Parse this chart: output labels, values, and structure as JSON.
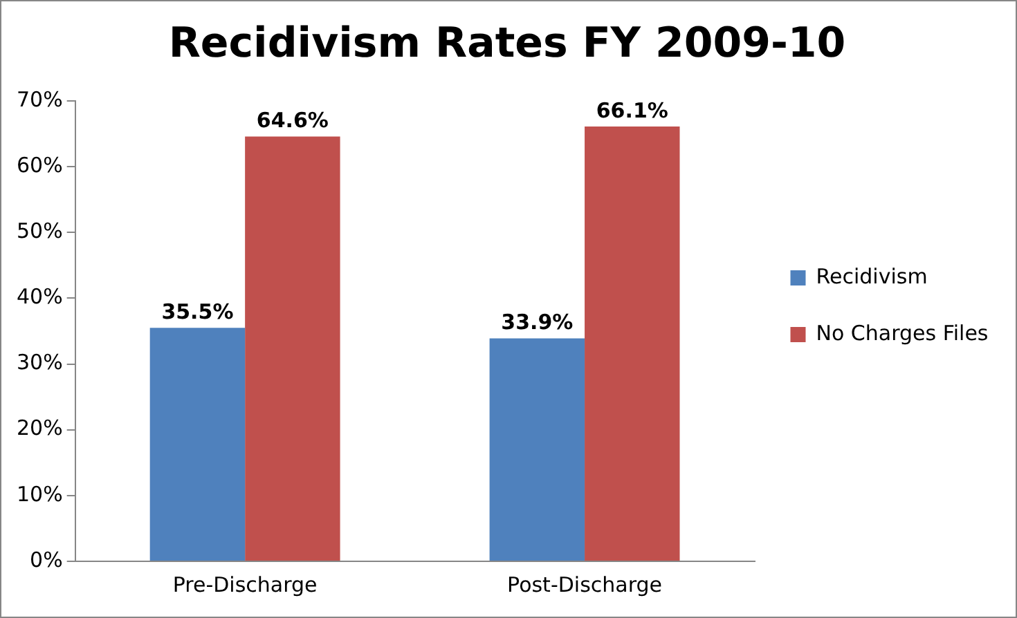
{
  "chart_data": {
    "type": "bar",
    "title": "Recidivism Rates FY 2009-10",
    "categories": [
      "Pre-Discharge",
      "Post-Discharge"
    ],
    "series": [
      {
        "name": "Recidivism",
        "color": "#4f81bd",
        "values": [
          35.5,
          33.9
        ],
        "value_labels": [
          "35.5%",
          "33.9%"
        ]
      },
      {
        "name": "No Charges Files",
        "color": "#c0504d",
        "values": [
          64.6,
          66.1
        ],
        "value_labels": [
          "64.6%",
          "66.1%"
        ]
      }
    ],
    "ylim": [
      0,
      70
    ],
    "yticks": [
      {
        "value": 0,
        "label": "0%"
      },
      {
        "value": 10,
        "label": "10%"
      },
      {
        "value": 20,
        "label": "20%"
      },
      {
        "value": 30,
        "label": "30%"
      },
      {
        "value": 40,
        "label": "40%"
      },
      {
        "value": 50,
        "label": "50%"
      },
      {
        "value": 60,
        "label": "60%"
      },
      {
        "value": 70,
        "label": "70%"
      }
    ],
    "grid": false,
    "legend": "right"
  }
}
